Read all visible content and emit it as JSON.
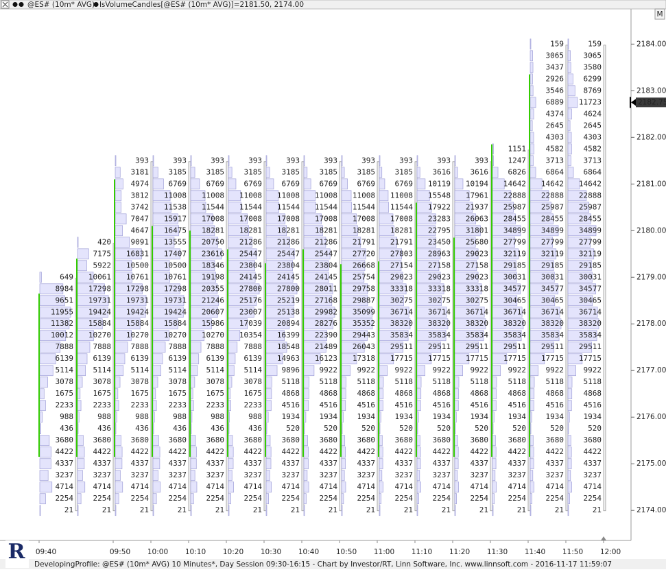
{
  "chart_data": {
    "type": "volume-profile",
    "header": "@ES# (10m* AVG)",
    "indicator": "lsVolumeCandles[@ES# (10m* AVG)]=2181.50, 2174.00",
    "footer": "DevelopingProfile: @ES# (10m* AVG) 10 Minutes*, Day Session 09:30-16:15 - Chart by Investor/RT, Linn Software, Inc. www.linnsoft.com - 2016-11-17 11:59:07",
    "button": "M",
    "logo": "R",
    "ylim": [
      2173.4,
      2184.74
    ],
    "yticks": [
      {
        "value": 2174,
        "label": "2174.00"
      },
      {
        "value": 2175,
        "label": "2175.00"
      },
      {
        "value": 2176,
        "label": "2176.00"
      },
      {
        "value": 2177,
        "label": "2177.00"
      },
      {
        "value": 2178,
        "label": "2178.00"
      },
      {
        "value": 2179,
        "label": "2179.00"
      },
      {
        "value": 2180,
        "label": "2180.00"
      },
      {
        "value": 2181,
        "label": "2181.00"
      },
      {
        "value": 2182,
        "label": "2182.00"
      },
      {
        "value": 2183,
        "label": "2183.00"
      },
      {
        "value": 2184,
        "label": "2184.00"
      }
    ],
    "last_price": {
      "value": 2182.75,
      "label": "2182.75"
    },
    "xticks": [
      "09:40",
      "09:50",
      "10:00",
      "10:10",
      "10:20",
      "10:30",
      "10:40",
      "10:50",
      "11:00",
      "11:10",
      "11:20",
      "11:30",
      "11:40",
      "11:50",
      "12:00"
    ],
    "levels": [
      2174,
      2174.25,
      2174.5,
      2174.75,
      2175,
      2175.25,
      2175.5,
      2175.75,
      2176,
      2176.25,
      2176.5,
      2176.75,
      2177,
      2177.25,
      2177.5,
      2177.75,
      2178,
      2178.25,
      2178.5,
      2178.75,
      2179,
      2179.25,
      2179.5,
      2179.75,
      2180,
      2180.25,
      2180.5,
      2180.75,
      2181,
      2181.25,
      2181.5,
      2181.75,
      2182,
      2182.25,
      2182.5,
      2182.75,
      2183,
      2183.25,
      2183.5,
      2183.75,
      2184
    ],
    "body_color": "#33cc00",
    "bar_color": "#e4e4fc",
    "columns": [
      {
        "body": [
          2175.15,
          2178.65
        ],
        "values": [
          21,
          2254,
          4714,
          3237,
          4337,
          4422,
          3680,
          436,
          988,
          2233,
          1675,
          3078,
          5114,
          6139,
          7888,
          10012,
          11382,
          11955,
          9651,
          8984,
          649
        ]
      },
      {
        "body": [
          2175.15,
          2179.4
        ],
        "values": [
          21,
          2254,
          4714,
          3237,
          4337,
          4422,
          3680,
          436,
          988,
          2233,
          1675,
          3078,
          5114,
          6139,
          7888,
          10270,
          15884,
          19424,
          19731,
          17298,
          10061,
          5922,
          7175,
          420
        ]
      },
      {
        "body": [
          2175.15,
          2181.1
        ],
        "values": [
          21,
          2254,
          4714,
          3237,
          4337,
          4422,
          3680,
          436,
          988,
          2233,
          1675,
          3078,
          5114,
          6139,
          7888,
          10270,
          15884,
          19424,
          19731,
          17298,
          10761,
          10500,
          16831,
          9091,
          4647,
          7047,
          3742,
          3812,
          4974,
          3181,
          393
        ]
      },
      {
        "body": [
          2175.15,
          2180.1
        ],
        "values": [
          21,
          2254,
          4714,
          3237,
          4337,
          4422,
          3680,
          436,
          988,
          2233,
          1675,
          3078,
          5114,
          6139,
          7888,
          10270,
          15884,
          19424,
          19731,
          17298,
          10761,
          10500,
          17407,
          13555,
          16475,
          15917,
          11538,
          11008,
          6769,
          3185,
          393
        ]
      },
      {
        "body": [
          2175.15,
          2180.0
        ],
        "values": [
          21,
          2254,
          4714,
          3237,
          4337,
          4422,
          3680,
          436,
          988,
          2233,
          1675,
          3078,
          5114,
          6139,
          7888,
          10270,
          15986,
          20607,
          21246,
          20355,
          19198,
          18346,
          23616,
          20750,
          18281,
          17008,
          11544,
          11008,
          6769,
          3185,
          393
        ]
      },
      {
        "body": [
          2175.15,
          2179.6
        ],
        "values": [
          21,
          2254,
          4714,
          3237,
          4337,
          4422,
          3680,
          436,
          988,
          2233,
          1675,
          3078,
          5114,
          6139,
          7888,
          10354,
          17039,
          23007,
          25176,
          27800,
          24145,
          23804,
          25447,
          21286,
          18281,
          17008,
          11544,
          11008,
          6769,
          3185,
          393
        ]
      },
      {
        "body": [
          2175.15,
          2179.3
        ],
        "values": [
          21,
          2254,
          4714,
          3237,
          4337,
          4422,
          3680,
          520,
          1934,
          4516,
          4868,
          5118,
          9896,
          14963,
          18548,
          16399,
          20894,
          25138,
          25219,
          27800,
          24145,
          23804,
          25447,
          21286,
          18281,
          17008,
          11544,
          11008,
          6769,
          3185,
          393
        ]
      },
      {
        "body": [
          2175.15,
          2179.6
        ],
        "values": [
          21,
          2254,
          4714,
          3237,
          4337,
          4422,
          3680,
          520,
          1934,
          4516,
          4868,
          5118,
          9922,
          16123,
          21489,
          22390,
          28276,
          29982,
          27168,
          28011,
          24145,
          23804,
          25447,
          21286,
          18281,
          17008,
          11544,
          11008,
          6769,
          3185,
          393
        ]
      },
      {
        "body": [
          2175.15,
          2179.28
        ],
        "values": [
          21,
          2254,
          4714,
          3237,
          4337,
          4422,
          3680,
          520,
          1934,
          4516,
          4868,
          5118,
          9922,
          17318,
          26043,
          29443,
          35352,
          35099,
          29887,
          29758,
          25754,
          26668,
          27720,
          21791,
          18281,
          17008,
          11544,
          11008,
          6769,
          3185,
          393
        ]
      },
      {
        "body": [
          2175.15,
          2179.34
        ],
        "values": [
          21,
          2254,
          4714,
          3237,
          4337,
          4422,
          3680,
          520,
          1934,
          4516,
          4868,
          5118,
          9922,
          17715,
          29511,
          35834,
          38320,
          36714,
          30275,
          33318,
          29023,
          27154,
          27803,
          21791,
          18281,
          17008,
          11544,
          11008,
          6769,
          3185,
          393
        ]
      },
      {
        "body": [
          2175.15,
          2180.6
        ],
        "values": [
          21,
          2254,
          4714,
          3237,
          4337,
          4422,
          3680,
          520,
          1934,
          4516,
          4868,
          5118,
          9922,
          17715,
          29511,
          35834,
          38320,
          36714,
          30275,
          33318,
          29023,
          27158,
          28963,
          23450,
          22795,
          23283,
          17922,
          15548,
          10119,
          3616,
          393
        ]
      },
      {
        "body": [
          2175.15,
          2179.85
        ],
        "values": [
          21,
          2254,
          4714,
          3237,
          4337,
          4422,
          3680,
          520,
          1934,
          4516,
          4868,
          5118,
          9922,
          17715,
          29511,
          35834,
          38320,
          36714,
          30275,
          33318,
          29023,
          27158,
          29023,
          25680,
          31801,
          26063,
          21937,
          17961,
          10194,
          3616,
          393
        ]
      },
      {
        "body": [
          2175.15,
          2181.85
        ],
        "values": [
          21,
          2254,
          4714,
          3237,
          4337,
          4422,
          3680,
          520,
          1934,
          4516,
          4868,
          5118,
          9922,
          17715,
          29511,
          35834,
          38320,
          36714,
          30465,
          34577,
          30031,
          29185,
          32119,
          27799,
          34899,
          28455,
          25987,
          22888,
          14642,
          6826,
          1247,
          1151
        ]
      },
      {
        "body": [
          2175.15,
          2183.35
        ],
        "values": [
          21,
          2254,
          4714,
          3237,
          4337,
          4422,
          3680,
          520,
          1934,
          4516,
          4868,
          5118,
          9922,
          17715,
          29511,
          35834,
          38320,
          36714,
          30465,
          34577,
          30031,
          29185,
          32119,
          27799,
          34899,
          28455,
          25987,
          22888,
          14642,
          6864,
          3713,
          4582,
          4303,
          2645,
          4374,
          6889,
          3546,
          2926,
          3437,
          3065,
          159
        ]
      },
      {
        "values": [
          21,
          2254,
          4714,
          3237,
          4337,
          4422,
          3680,
          520,
          1934,
          4516,
          4868,
          5118,
          9922,
          17715,
          29511,
          35834,
          38320,
          36714,
          30465,
          34577,
          30031,
          29185,
          32119,
          27799,
          34899,
          28455,
          25987,
          22888,
          14642,
          6864,
          3713,
          4582,
          4303,
          2645,
          4624,
          11723,
          8769,
          6299,
          3580,
          3065,
          159
        ]
      }
    ]
  }
}
